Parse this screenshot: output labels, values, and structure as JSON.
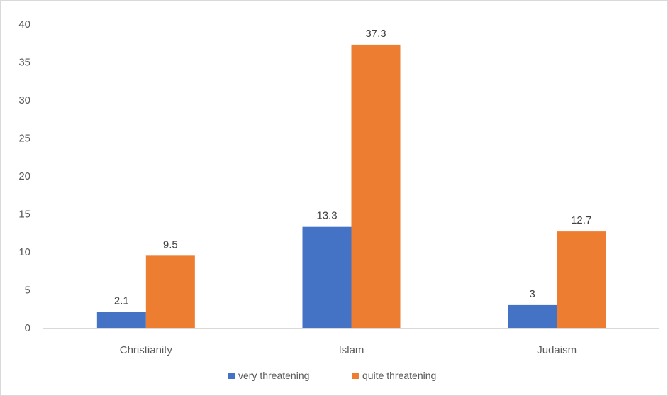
{
  "chart_data": {
    "type": "bar",
    "title": "",
    "xlabel": "",
    "ylabel": "",
    "categories": [
      "Christianity",
      "Islam",
      "Judaism"
    ],
    "series": [
      {
        "name": "very threatening",
        "values": [
          2.1,
          13.3,
          3
        ],
        "labels": [
          "2.1",
          "13.3",
          "3"
        ],
        "color": "#4472C4"
      },
      {
        "name": "quite threatening",
        "values": [
          9.5,
          37.3,
          12.7
        ],
        "labels": [
          "9.5",
          "37.3",
          "12.7"
        ],
        "color": "#ED7D31"
      }
    ],
    "ylim": [
      0,
      40
    ],
    "yticks": [
      "0",
      "5",
      "10",
      "15",
      "20",
      "25",
      "30",
      "35",
      "40"
    ],
    "grid": false,
    "legend_position": "bottom"
  }
}
